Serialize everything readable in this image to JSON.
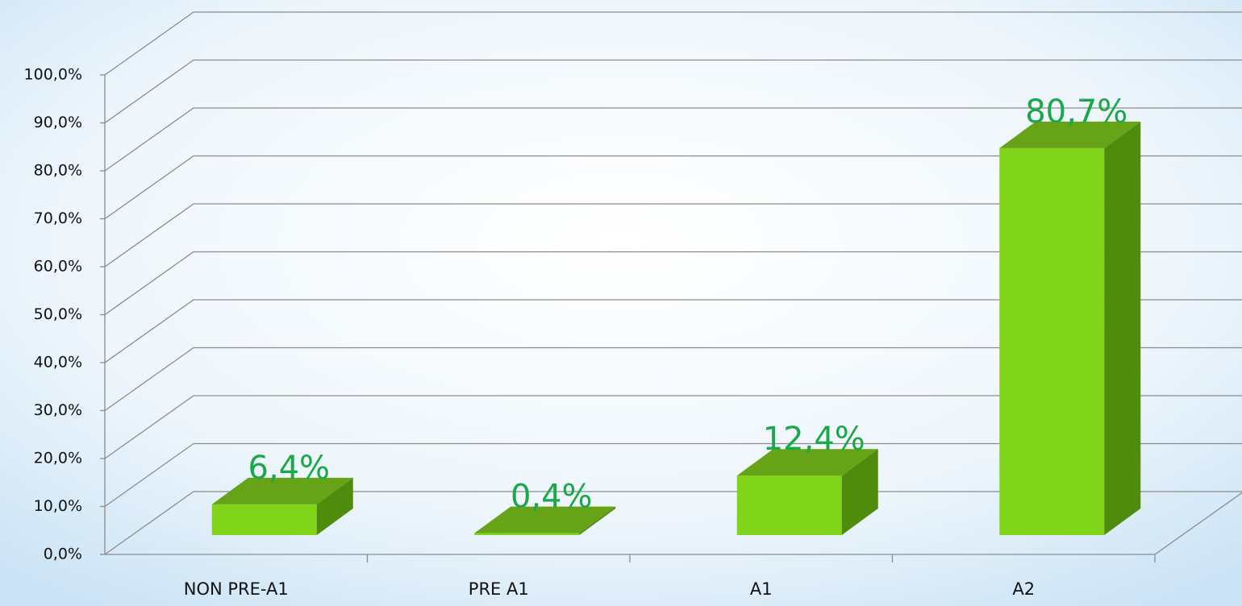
{
  "chart_data": {
    "type": "bar3d",
    "categories": [
      "NON PRE-A1",
      "PRE A1",
      "A1",
      "A2"
    ],
    "values": [
      6.4,
      0.4,
      12.4,
      80.7
    ],
    "value_labels": [
      "6,4%",
      "0,4%",
      "12,4%",
      "80,7%"
    ],
    "color": "#80d41a",
    "ylim": [
      0,
      100
    ],
    "yticks": [
      {
        "value": 0,
        "label": "0,0%"
      },
      {
        "value": 10,
        "label": "10,0%"
      },
      {
        "value": 20,
        "label": "20,0%"
      },
      {
        "value": 30,
        "label": "30,0%"
      },
      {
        "value": 40,
        "label": "40,0%"
      },
      {
        "value": 50,
        "label": "50,0%"
      },
      {
        "value": 60,
        "label": "60,0%"
      },
      {
        "value": 70,
        "label": "70,0%"
      },
      {
        "value": 80,
        "label": "80,0%"
      },
      {
        "value": 90,
        "label": "90,0%"
      },
      {
        "value": 100,
        "label": "100,0%"
      }
    ],
    "grid": true
  }
}
